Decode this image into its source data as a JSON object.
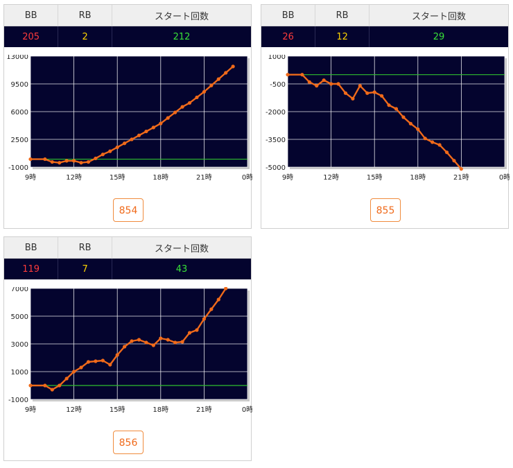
{
  "headers": {
    "bb": "BB",
    "rb": "RB",
    "start": "スタート回数"
  },
  "colors": {
    "plot_bg": "#04042e",
    "line": "#f06a1a",
    "baseline": "#2fbf2f",
    "grid": "#ffffff",
    "bb": "#ff3b3b",
    "rb": "#ffd400",
    "start": "#38e238"
  },
  "machines": [
    {
      "stats": {
        "bb": "205",
        "rb": "2",
        "start": "212"
      },
      "machine_no": "854"
    },
    {
      "stats": {
        "bb": "26",
        "rb": "12",
        "start": "29"
      },
      "machine_no": "855"
    },
    {
      "stats": {
        "bb": "119",
        "rb": "7",
        "start": "43"
      },
      "machine_no": "856"
    }
  ],
  "chart_data": [
    {
      "type": "line",
      "x_tick_labels": [
        "9時",
        "12時",
        "15時",
        "18時",
        "21時",
        "0時"
      ],
      "xlim": [
        9,
        24
      ],
      "ylim": [
        -1000,
        13000
      ],
      "y_tick_labels": [
        "13000",
        "9500",
        "6000",
        "2500",
        "-1000"
      ],
      "y_ticks": [
        13000,
        9500,
        6000,
        2500,
        -1000
      ],
      "baseline": 0,
      "grid": true,
      "x": [
        9,
        10,
        10.5,
        11,
        11.5,
        12,
        12.5,
        13,
        13.5,
        14,
        14.5,
        15,
        15.5,
        16,
        16.5,
        17,
        17.5,
        18,
        18.5,
        19,
        19.5,
        20,
        20.5,
        21,
        21.5,
        22,
        22.5,
        23
      ],
      "y": [
        0,
        0,
        -350,
        -450,
        -200,
        -200,
        -450,
        -350,
        100,
        600,
        1000,
        1500,
        2000,
        2500,
        3000,
        3500,
        4000,
        4500,
        5200,
        5900,
        6600,
        7100,
        7800,
        8500,
        9300,
        10100,
        10900,
        11700
      ]
    },
    {
      "type": "line",
      "x_tick_labels": [
        "9時",
        "12時",
        "15時",
        "18時",
        "21時",
        "0時"
      ],
      "xlim": [
        9,
        24
      ],
      "ylim": [
        -5000,
        1000
      ],
      "y_tick_labels": [
        "1000",
        "-500",
        "-2000",
        "-3500",
        "-5000"
      ],
      "y_ticks": [
        1000,
        -500,
        -2000,
        -3500,
        -5000
      ],
      "baseline": 0,
      "grid": true,
      "x": [
        9,
        10,
        10.5,
        11,
        11.5,
        12,
        12.5,
        13,
        13.5,
        14,
        14.5,
        15,
        15.5,
        16,
        16.5,
        17,
        17.5,
        18,
        18.5,
        19,
        19.5,
        20,
        20.5,
        21
      ],
      "y": [
        0,
        0,
        -400,
        -600,
        -300,
        -500,
        -500,
        -1000,
        -1300,
        -600,
        -1000,
        -950,
        -1150,
        -1650,
        -1850,
        -2300,
        -2650,
        -2950,
        -3450,
        -3650,
        -3800,
        -4200,
        -4650,
        -5100
      ]
    },
    {
      "type": "line",
      "x_tick_labels": [
        "9時",
        "12時",
        "15時",
        "18時",
        "21時",
        "0時"
      ],
      "xlim": [
        9,
        24
      ],
      "ylim": [
        -1000,
        7000
      ],
      "y_tick_labels": [
        "7000",
        "5000",
        "3000",
        "1000",
        "-1000"
      ],
      "y_ticks": [
        7000,
        5000,
        3000,
        1000,
        -1000
      ],
      "baseline": 0,
      "grid": true,
      "x": [
        9,
        10,
        10.5,
        11,
        11.5,
        12,
        12.5,
        13,
        13.5,
        14,
        14.5,
        15,
        15.5,
        16,
        16.5,
        17,
        17.5,
        18,
        18.5,
        19,
        19.5,
        20,
        20.5,
        21,
        21.5,
        22,
        22.5
      ],
      "y": [
        0,
        0,
        -300,
        0,
        500,
        1000,
        1300,
        1700,
        1750,
        1800,
        1500,
        2200,
        2800,
        3200,
        3300,
        3100,
        2900,
        3400,
        3300,
        3100,
        3150,
        3800,
        4000,
        4800,
        5500,
        6200,
        7000
      ]
    }
  ]
}
